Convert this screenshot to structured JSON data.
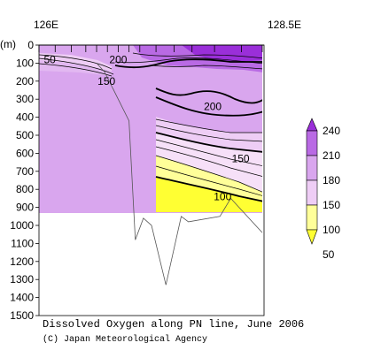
{
  "chart_data": {
    "type": "heatmap",
    "title": "Dissolved Oxygen along PN line, June 2006",
    "credit": "(C) Japan Meteorological Agency",
    "ylabel": "(m)",
    "x_labels": [
      "126E",
      "128.5E"
    ],
    "y_ticks": [
      0,
      100,
      200,
      300,
      400,
      500,
      600,
      700,
      800,
      900,
      1000,
      1100,
      1200,
      1300,
      1400,
      1500
    ],
    "ylim": [
      0,
      1500
    ],
    "xlim": [
      126,
      128.5
    ],
    "colorbar": {
      "levels": [
        240,
        210,
        180,
        150,
        100,
        50
      ],
      "colors": [
        "#9a2fd9",
        "#b96ae4",
        "#d9a6ee",
        "#eecdf5",
        "#ffff99",
        "#ffff33"
      ]
    },
    "contour_labels": [
      {
        "value": "50",
        "x": 126.12,
        "depth": 100
      },
      {
        "value": "200",
        "x": 126.88,
        "depth": 100
      },
      {
        "value": "150",
        "x": 126.75,
        "depth": 220
      },
      {
        "value": "200",
        "x": 127.93,
        "depth": 360
      },
      {
        "value": "150",
        "x": 128.24,
        "depth": 650
      },
      {
        "value": "100",
        "x": 128.04,
        "depth": 860
      }
    ],
    "bottom_profile": [
      {
        "x": 126.64,
        "depth": 100
      },
      {
        "x": 126.73,
        "depth": 150
      },
      {
        "x": 127.0,
        "depth": 420
      },
      {
        "x": 127.07,
        "depth": 1080
      },
      {
        "x": 127.16,
        "depth": 960
      },
      {
        "x": 127.25,
        "depth": 1000
      },
      {
        "x": 127.41,
        "depth": 1330
      },
      {
        "x": 127.58,
        "depth": 950
      },
      {
        "x": 127.66,
        "depth": 980
      },
      {
        "x": 128.01,
        "depth": 950
      },
      {
        "x": 128.13,
        "depth": 850
      },
      {
        "x": 128.48,
        "depth": 1040
      }
    ]
  }
}
